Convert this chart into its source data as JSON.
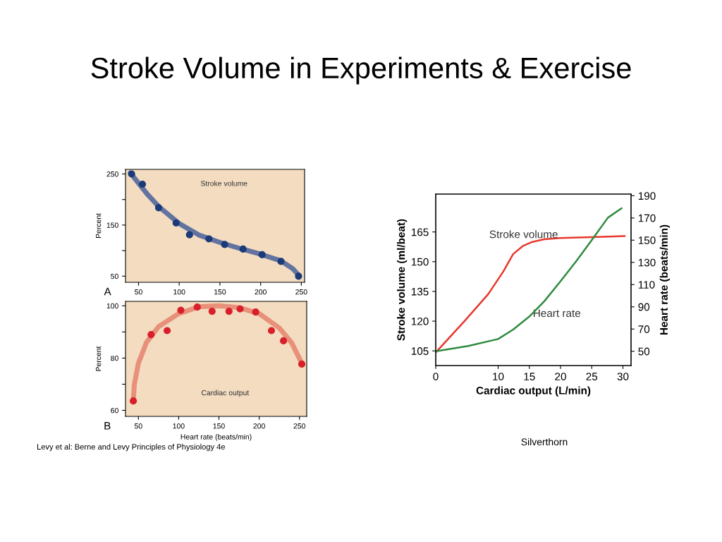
{
  "chart_data": [
    {
      "type": "scatter",
      "title": "Stroke Volume in Experiments & Exercise",
      "ylabel": "Percent",
      "xlim": [
        34,
        254
      ],
      "ylim": [
        38,
        259
      ],
      "xticks": [
        50,
        100,
        150,
        200,
        250
      ],
      "yticks": [
        50,
        {
          "value": 100,
          "label": null
        },
        150,
        {
          "value": 200,
          "label": null
        },
        250
      ],
      "annotations": [
        "A"
      ],
      "series": [
        {
          "type": "scatter",
          "marker": "circle",
          "color": "#1b3a78",
          "x": [
            41.5,
            54.8,
            74.7,
            96.2,
            112.6,
            136.5,
            155.8,
            178.4,
            201.8,
            225,
            246.6
          ],
          "values": [
            250,
            230,
            184,
            154,
            131,
            123,
            112,
            103,
            92,
            79,
            50
          ]
        },
        {
          "type": "line",
          "name": "Stroke volume",
          "color": "#6273a0",
          "x": [
            40,
            50,
            60,
            75,
            100,
            125,
            150,
            175,
            200,
            225,
            240,
            247
          ],
          "values": [
            252,
            232,
            212,
            186,
            153,
            130,
            116,
            104,
            93,
            80,
            64,
            51
          ]
        }
      ]
    },
    {
      "type": "scatter",
      "xlabel": "Heart rate (beats/min)",
      "ylabel": "Percent",
      "xlim": [
        34,
        259
      ],
      "ylim": [
        57.7,
        101.7
      ],
      "xticks": [
        50,
        100,
        150,
        200,
        250
      ],
      "yticks": [
        60,
        {
          "value": 70,
          "label": null
        },
        80,
        {
          "value": 90,
          "label": null
        },
        100
      ],
      "annotations": [
        "B",
        "Levy et al: Berne and Levy Principles of Physiology 4e"
      ],
      "series": [
        {
          "type": "scatter",
          "marker": "circle",
          "color": "#d9202a",
          "x": [
            43.7,
            65.8,
            85.7,
            102.7,
            123.1,
            141.5,
            162.5,
            176.3,
            195.6,
            215.2,
            230.2,
            252.9
          ],
          "values": [
            63.6,
            89,
            90.5,
            98.3,
            99.5,
            97.9,
            97.9,
            98.8,
            97.6,
            90.5,
            86.6,
            77.7
          ]
        },
        {
          "type": "line",
          "name": "Cardiac output",
          "color": "#e8907a",
          "x": [
            43.7,
            45,
            50,
            60,
            75,
            100,
            125,
            150,
            175,
            200,
            225,
            240,
            252.9
          ],
          "values": [
            64,
            70,
            78,
            86,
            92,
            97,
            99.6,
            100,
            99.3,
            97,
            91.5,
            86,
            78
          ]
        }
      ]
    },
    {
      "type": "line",
      "xlabel": "Cardiac output (L/min)",
      "ylabel": "Stroke volume (ml/beat)",
      "y2label": "Heart rate (beats/min)",
      "xlim": [
        0,
        31.3
      ],
      "ylim": [
        97.6,
        184.1
      ],
      "y2lim": [
        37.1,
        191.5
      ],
      "xticks": [
        0,
        10,
        15,
        20,
        25,
        30
      ],
      "yticks": [
        105,
        120,
        135,
        150,
        165
      ],
      "y2ticks": [
        50,
        70,
        90,
        110,
        130,
        150,
        170,
        190
      ],
      "annotations": [
        "Silverthorn"
      ],
      "series": [
        {
          "name": "Stroke volume",
          "color": "#e8372c",
          "x": [
            0,
            4.6,
            8.4,
            10.8,
            12.4,
            14,
            15.5,
            17.4,
            20,
            25,
            30.3
          ],
          "values": [
            104.2,
            120,
            133.6,
            144.9,
            153.8,
            158,
            160,
            161.3,
            161.9,
            162.4,
            162.9
          ]
        },
        {
          "name": "Heart rate",
          "color": "#2e8b3e",
          "axis": "y2",
          "x": [
            0,
            5.2,
            10,
            12.4,
            15,
            17.4,
            20,
            22.5,
            25,
            27.6,
            29.8
          ],
          "values": [
            50,
            54.7,
            61,
            69.5,
            81.2,
            95,
            113,
            131,
            150.1,
            170.3,
            178.8
          ]
        }
      ]
    }
  ]
}
